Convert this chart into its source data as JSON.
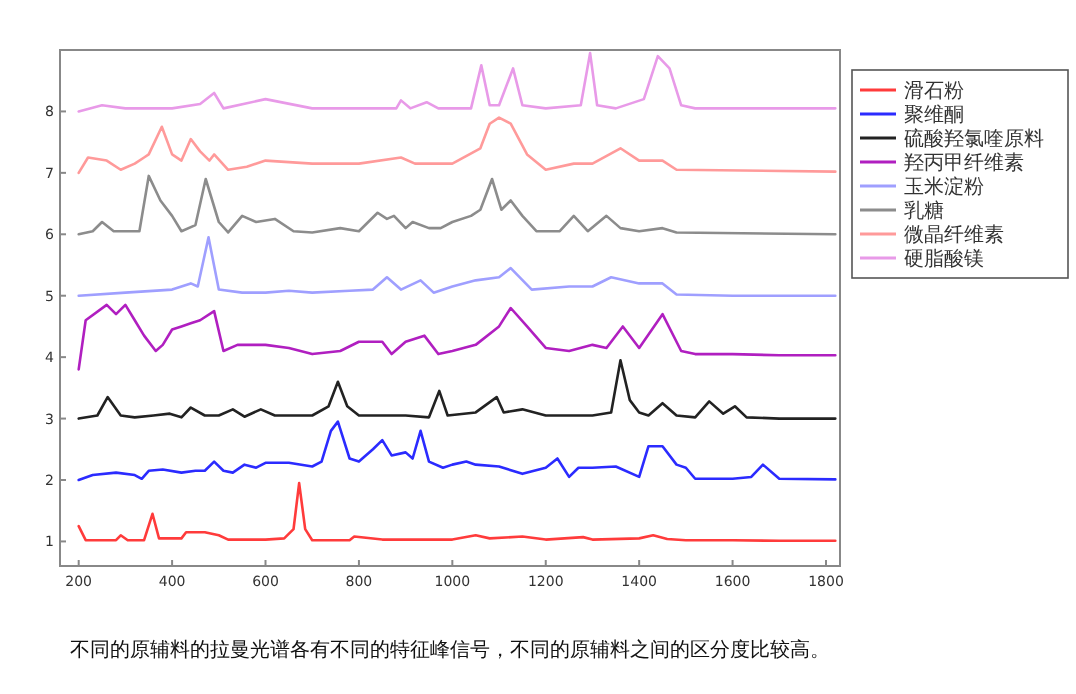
{
  "chart_data": {
    "type": "line",
    "xlim": [
      160,
      1830
    ],
    "ylim": [
      0.6,
      9
    ],
    "xticks": [
      200,
      400,
      600,
      800,
      1000,
      1200,
      1400,
      1600,
      1800
    ],
    "yticks": [
      1,
      2,
      3,
      4,
      5,
      6,
      7,
      8
    ],
    "grid": false,
    "legend": "right",
    "marker": "none",
    "line_style": "solid",
    "annotations": [
      "不同的原辅料的拉曼光谱各有不同的特征峰信号，不同的原辅料之间的区分度比较高。"
    ],
    "series": [
      {
        "name": "滑石粉",
        "color": "#ff3b3b",
        "x": [
          200,
          215,
          280,
          290,
          305,
          340,
          358,
          372,
          420,
          430,
          470,
          500,
          520,
          600,
          640,
          660,
          672,
          685,
          700,
          780,
          790,
          850,
          1000,
          1050,
          1080,
          1150,
          1200,
          1280,
          1300,
          1400,
          1430,
          1460,
          1500,
          1600,
          1700,
          1820
        ],
        "values": [
          1.25,
          1.02,
          1.02,
          1.1,
          1.02,
          1.02,
          1.45,
          1.05,
          1.05,
          1.15,
          1.15,
          1.1,
          1.03,
          1.03,
          1.05,
          1.2,
          1.95,
          1.2,
          1.02,
          1.02,
          1.08,
          1.03,
          1.03,
          1.1,
          1.05,
          1.08,
          1.03,
          1.07,
          1.03,
          1.05,
          1.1,
          1.04,
          1.02,
          1.02,
          1.01,
          1.01
        ]
      },
      {
        "name": "聚维酮",
        "color": "#2b2bff",
        "x": [
          200,
          230,
          280,
          320,
          335,
          350,
          380,
          420,
          450,
          470,
          490,
          510,
          530,
          555,
          580,
          600,
          650,
          700,
          720,
          740,
          755,
          780,
          800,
          830,
          850,
          870,
          900,
          915,
          932,
          950,
          980,
          1000,
          1030,
          1050,
          1100,
          1150,
          1200,
          1225,
          1250,
          1270,
          1300,
          1350,
          1400,
          1420,
          1450,
          1480,
          1500,
          1520,
          1600,
          1640,
          1665,
          1700,
          1820
        ],
        "values": [
          2.0,
          2.08,
          2.12,
          2.08,
          2.02,
          2.15,
          2.17,
          2.12,
          2.15,
          2.15,
          2.3,
          2.15,
          2.12,
          2.25,
          2.2,
          2.28,
          2.28,
          2.22,
          2.3,
          2.8,
          2.95,
          2.35,
          2.3,
          2.5,
          2.65,
          2.4,
          2.45,
          2.35,
          2.8,
          2.3,
          2.2,
          2.25,
          2.3,
          2.25,
          2.22,
          2.1,
          2.2,
          2.35,
          2.05,
          2.2,
          2.2,
          2.22,
          2.05,
          2.55,
          2.55,
          2.25,
          2.2,
          2.02,
          2.02,
          2.05,
          2.25,
          2.02,
          2.01
        ]
      },
      {
        "name": "硫酸羟氯喹原料",
        "color": "#222222",
        "x": [
          200,
          240,
          262,
          290,
          320,
          360,
          395,
          420,
          440,
          470,
          500,
          530,
          555,
          590,
          620,
          655,
          700,
          735,
          755,
          775,
          800,
          850,
          900,
          950,
          972,
          990,
          1050,
          1095,
          1110,
          1150,
          1200,
          1250,
          1300,
          1340,
          1360,
          1380,
          1400,
          1420,
          1450,
          1480,
          1520,
          1550,
          1580,
          1605,
          1630,
          1700,
          1820
        ],
        "values": [
          3.0,
          3.05,
          3.35,
          3.05,
          3.02,
          3.05,
          3.08,
          3.02,
          3.18,
          3.05,
          3.05,
          3.15,
          3.03,
          3.15,
          3.05,
          3.05,
          3.05,
          3.2,
          3.6,
          3.2,
          3.05,
          3.05,
          3.05,
          3.02,
          3.45,
          3.05,
          3.1,
          3.35,
          3.1,
          3.15,
          3.05,
          3.05,
          3.05,
          3.1,
          3.95,
          3.3,
          3.1,
          3.05,
          3.25,
          3.05,
          3.02,
          3.28,
          3.08,
          3.2,
          3.02,
          3.0,
          3.0
        ]
      },
      {
        "name": "羟丙甲纤维素",
        "color": "#b01fc0",
        "x": [
          200,
          215,
          260,
          280,
          300,
          320,
          340,
          365,
          380,
          400,
          420,
          440,
          460,
          490,
          510,
          540,
          600,
          650,
          700,
          760,
          800,
          850,
          870,
          900,
          940,
          970,
          1000,
          1050,
          1100,
          1125,
          1160,
          1200,
          1250,
          1300,
          1330,
          1365,
          1400,
          1450,
          1490,
          1520,
          1600,
          1700,
          1820
        ],
        "values": [
          3.8,
          4.6,
          4.85,
          4.7,
          4.85,
          4.6,
          4.35,
          4.1,
          4.2,
          4.45,
          4.5,
          4.55,
          4.6,
          4.75,
          4.1,
          4.2,
          4.2,
          4.15,
          4.05,
          4.1,
          4.25,
          4.25,
          4.05,
          4.25,
          4.35,
          4.05,
          4.1,
          4.2,
          4.5,
          4.8,
          4.5,
          4.15,
          4.1,
          4.2,
          4.15,
          4.5,
          4.15,
          4.7,
          4.1,
          4.05,
          4.05,
          4.03,
          4.03
        ]
      },
      {
        "name": "玉米淀粉",
        "color": "#9f9fff",
        "x": [
          200,
          300,
          400,
          440,
          455,
          478,
          500,
          550,
          600,
          650,
          700,
          780,
          830,
          860,
          890,
          932,
          960,
          1000,
          1050,
          1100,
          1125,
          1170,
          1250,
          1300,
          1340,
          1400,
          1450,
          1480,
          1600,
          1820
        ],
        "values": [
          5.0,
          5.05,
          5.1,
          5.2,
          5.15,
          5.95,
          5.1,
          5.05,
          5.05,
          5.08,
          5.05,
          5.08,
          5.1,
          5.3,
          5.1,
          5.25,
          5.05,
          5.15,
          5.25,
          5.3,
          5.45,
          5.1,
          5.15,
          5.15,
          5.3,
          5.2,
          5.2,
          5.02,
          5.0,
          5.0
        ]
      },
      {
        "name": "乳糖",
        "color": "#8c8c8c",
        "x": [
          200,
          230,
          250,
          275,
          300,
          330,
          350,
          375,
          400,
          420,
          450,
          472,
          500,
          520,
          550,
          580,
          620,
          660,
          700,
          760,
          800,
          840,
          860,
          875,
          900,
          915,
          950,
          975,
          1000,
          1040,
          1060,
          1085,
          1105,
          1125,
          1150,
          1180,
          1230,
          1260,
          1290,
          1330,
          1360,
          1400,
          1450,
          1480,
          1820
        ],
        "values": [
          6.0,
          6.05,
          6.2,
          6.05,
          6.05,
          6.05,
          6.95,
          6.55,
          6.3,
          6.05,
          6.15,
          6.9,
          6.2,
          6.03,
          6.3,
          6.2,
          6.25,
          6.05,
          6.03,
          6.1,
          6.05,
          6.35,
          6.25,
          6.3,
          6.1,
          6.2,
          6.1,
          6.1,
          6.2,
          6.3,
          6.4,
          6.9,
          6.4,
          6.55,
          6.3,
          6.05,
          6.05,
          6.3,
          6.05,
          6.3,
          6.1,
          6.05,
          6.1,
          6.03,
          6.0
        ]
      },
      {
        "name": "微晶纤维素",
        "color": "#ff9a9a",
        "x": [
          200,
          220,
          260,
          290,
          320,
          340,
          350,
          378,
          400,
          420,
          440,
          460,
          480,
          490,
          520,
          560,
          600,
          700,
          800,
          890,
          920,
          1000,
          1060,
          1080,
          1100,
          1125,
          1160,
          1200,
          1260,
          1300,
          1360,
          1400,
          1450,
          1480,
          1820
        ],
        "values": [
          7.0,
          7.25,
          7.2,
          7.05,
          7.15,
          7.25,
          7.3,
          7.75,
          7.3,
          7.2,
          7.55,
          7.35,
          7.2,
          7.3,
          7.05,
          7.1,
          7.2,
          7.15,
          7.15,
          7.25,
          7.15,
          7.15,
          7.4,
          7.8,
          7.9,
          7.8,
          7.3,
          7.05,
          7.15,
          7.15,
          7.4,
          7.2,
          7.2,
          7.05,
          7.02
        ]
      },
      {
        "name": "硬脂酸镁",
        "color": "#e89ae8",
        "x": [
          200,
          250,
          300,
          400,
          460,
          490,
          510,
          600,
          700,
          800,
          880,
          890,
          910,
          945,
          970,
          1040,
          1062,
          1080,
          1100,
          1130,
          1150,
          1200,
          1275,
          1295,
          1310,
          1350,
          1410,
          1440,
          1465,
          1490,
          1520,
          1820
        ],
        "values": [
          8.0,
          8.1,
          8.05,
          8.05,
          8.12,
          8.3,
          8.05,
          8.2,
          8.05,
          8.05,
          8.05,
          8.18,
          8.05,
          8.15,
          8.05,
          8.05,
          8.75,
          8.1,
          8.1,
          8.7,
          8.1,
          8.05,
          8.1,
          8.95,
          8.1,
          8.05,
          8.2,
          8.9,
          8.7,
          8.1,
          8.05,
          8.05
        ]
      }
    ]
  }
}
